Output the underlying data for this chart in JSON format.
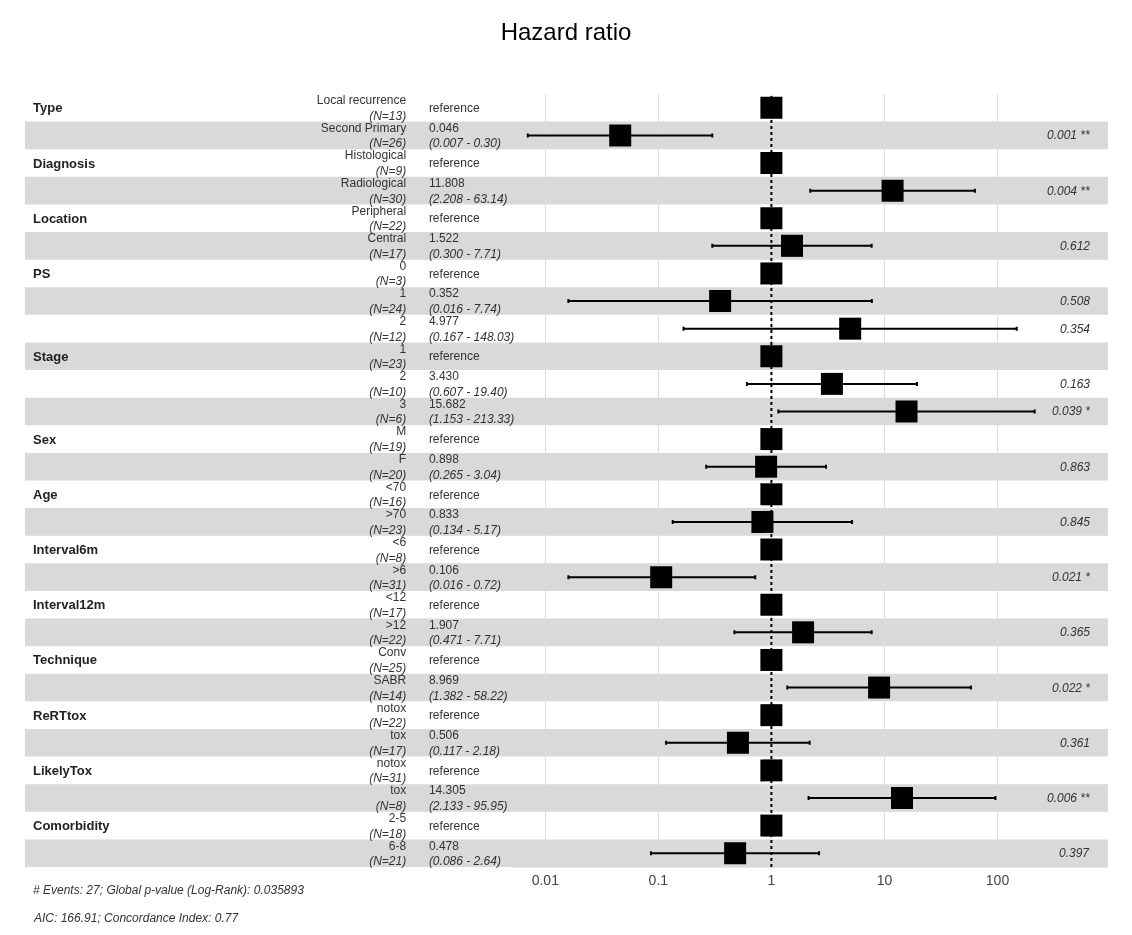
{
  "chart_data": {
    "type": "scatter",
    "title": "Hazard ratio",
    "orientation": "horizontal",
    "categories": [
      "Local recurrence\n(N=13)",
      "Second Primary\n(N=26)",
      "Histological\n(N=9)",
      "Radiological\n(N=30)",
      "Peripheral\n(N=22)",
      "Central\n(N=17)",
      "0\n(N=3)",
      "1\n(N=24)",
      "2\n(N=12)",
      "1\n(N=23)",
      "2\n(N=10)",
      "3\n(N=6)",
      "M\n(N=19)",
      "F\n(N=20)",
      "<70\n(N=16)",
      ">70\n(N=23)",
      "<6\n(N=8)",
      ">6\n(N=31)",
      "<12\n(N=17)",
      ">12\n(N=22)",
      "Conv\n(N=25)",
      "SABR\n(N=14)",
      "notox\n(N=22)",
      "tox\n(N=17)",
      "notox\n(N=31)",
      "tox\n(N=8)",
      "2-5\n(N=18)",
      "6-8\n(N=21)"
    ],
    "y2_categories": [
      "reference",
      "0.046\n(0.007 - 0.30)",
      "reference",
      "11.808\n(2.208 - 63.14)",
      "reference",
      "1.522\n(0.300 - 7.71)",
      "reference",
      "0.352\n(0.016 - 7.74)",
      "4.977\n(0.167 - 148.03)",
      "reference",
      "3.430\n(0.607 - 19.40)",
      "15.682\n(1.153 - 213.33)",
      "reference",
      "0.898\n(0.265 - 3.04)",
      "reference",
      "0.833\n(0.134 - 5.17)",
      "reference",
      "0.106\n(0.016 - 0.72)",
      "reference",
      "1.907\n(0.471 - 7.71)",
      "reference",
      "8.969\n(1.382 - 58.22)",
      "reference",
      "0.506\n(0.117 - 2.18)",
      "reference",
      "14.305\n(2.133 - 95.95)",
      "reference",
      "0.478\n(0.086 - 2.64)"
    ],
    "values": [
      1,
      0.046,
      1,
      11.808,
      1,
      1.522,
      1,
      0.352,
      4.977,
      1,
      3.43,
      15.682,
      1,
      0.898,
      1,
      0.833,
      1,
      0.106,
      1,
      1.907,
      1,
      8.969,
      1,
      0.506,
      1,
      14.305,
      1,
      0.478
    ],
    "errors": [
      null,
      [
        0.007,
        0.3
      ],
      null,
      [
        2.208,
        63.14
      ],
      null,
      [
        0.3,
        7.71
      ],
      null,
      [
        0.016,
        7.74
      ],
      [
        0.167,
        148.03
      ],
      null,
      [
        0.607,
        19.4
      ],
      [
        1.153,
        213.33
      ],
      null,
      [
        0.265,
        3.04
      ],
      null,
      [
        0.134,
        5.17
      ],
      null,
      [
        0.016,
        0.72
      ],
      null,
      [
        0.471,
        7.71
      ],
      null,
      [
        1.382,
        58.22
      ],
      null,
      [
        0.117,
        2.18
      ],
      null,
      [
        2.133,
        95.95
      ],
      null,
      [
        0.086,
        2.64
      ]
    ],
    "color": "#000000",
    "marker": "square",
    "log": "x",
    "xlim": [
      0.005,
      950
    ],
    "xticks": [
      0.01,
      0.1,
      1,
      10,
      100
    ],
    "grid": "x",
    "legend": false,
    "ref_lines": [
      {
        "axis": "x",
        "value": 1,
        "line_style": "dotted",
        "color": "#000000"
      }
    ],
    "annotations": [
      "Type",
      "Diagnosis",
      "Location",
      "PS",
      "Stage",
      "Sex",
      "Age",
      "Interval6m",
      "Interval12m",
      "Technique",
      "ReRTtox",
      "LikelyTox",
      "Comorbidity",
      "0.001 **",
      "0.004 **",
      "0.612",
      "0.508",
      "0.354",
      "0.163",
      "0.039 *",
      "0.863",
      "0.845",
      "0.021 *",
      "0.365",
      "0.022 *",
      "0.361",
      "0.006 **",
      "0.397",
      "# Events: 27; Global p-value (Log-Rank): 0.035893",
      "AIC: 166.91; Concordance Index: 0.77"
    ]
  }
}
